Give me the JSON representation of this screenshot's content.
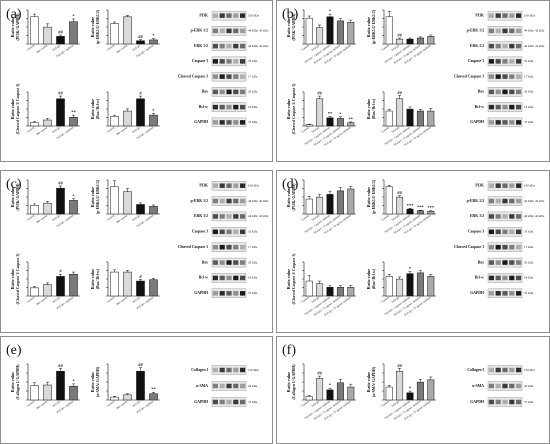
{
  "figure": {
    "panels": [
      {
        "label": "(a)",
        "charts": [
          {
            "ylabel": "Ratio value (PI3K/ GAPDH)",
            "categories": [
              "Control",
              "Bee venom",
              "TGF-β1",
              "TGF-β1+ melittin"
            ],
            "values": [
              1.0,
              0.62,
              0.28,
              0.82
            ],
            "errors": [
              0.1,
              0.12,
              0.05,
              0.1
            ],
            "marks": [
              "",
              "",
              "##",
              "*"
            ]
          },
          {
            "ylabel": "Ratio value (p-ERK1/2/ ERK1/2)",
            "categories": [
              "Control",
              "Bee venom",
              "TGF-β1",
              "TGF-β1+ melittin"
            ],
            "values": [
              0.75,
              1.0,
              0.12,
              0.15
            ],
            "errors": [
              0.06,
              0.05,
              0.04,
              0.05
            ],
            "marks": [
              "",
              "",
              "##",
              "*"
            ]
          },
          {
            "ylabel": "Ratio value (Cleaved Caspase 3/ Caspase 3)",
            "categories": [
              "Control",
              "Bee venom",
              "TGF-β1",
              "TGF-β1+ melittin"
            ],
            "values": [
              0.12,
              0.22,
              1.0,
              0.32
            ],
            "errors": [
              0.04,
              0.06,
              0.1,
              0.08
            ],
            "marks": [
              "",
              "",
              "##",
              "**"
            ]
          },
          {
            "ylabel": "Ratio value (Bax/ Bcl-w)",
            "categories": [
              "Control",
              "Bee venom",
              "TGF-β1",
              "TGF-β1+ melittin"
            ],
            "values": [
              0.35,
              0.55,
              1.0,
              0.4
            ],
            "errors": [
              0.05,
              0.08,
              0.1,
              0.06
            ],
            "marks": [
              "",
              "",
              "#",
              "*"
            ]
          }
        ],
        "blots": [
          {
            "protein": "PI3K",
            "size": "100 kDa"
          },
          {
            "protein": "p-ERK 1/2",
            "size": "44 kDa/ 42 kDa"
          },
          {
            "protein": "ERK 1/2",
            "size": "44 kDa/ 42 kDa"
          },
          {
            "protein": "Caspase 3",
            "size": "35 kDa"
          },
          {
            "protein": "Cleaved Caspase 3",
            "size": "17 kDa"
          },
          {
            "protein": "Bax",
            "size": "20 kDa"
          },
          {
            "protein": "Bcl-w",
            "size": "18 kDa"
          },
          {
            "protein": "GAPDH",
            "size": "37 kDa"
          }
        ]
      },
      {
        "label": "(b)",
        "charts": [
          {
            "ylabel": "Ratio value (PI3K/ GAPDH)",
            "categories": [
              "Control",
              "TGF-β1",
              "TGF-β1+ 5 μg/mL melittin",
              "TGF-β1+ 25 μg/mL melittin",
              "TGF-β1+ 50 μg/mL melittin"
            ],
            "values": [
              0.95,
              0.6,
              1.0,
              0.85,
              0.8
            ],
            "errors": [
              0.08,
              0.1,
              0.1,
              0.08,
              0.08
            ],
            "marks": [
              "",
              "",
              "*",
              "",
              ""
            ]
          },
          {
            "ylabel": "Ratio value (p-ERK1/2/ ERK1/2)",
            "categories": [
              "Control",
              "TGF-β1",
              "TGF-β1+ 5 μg/mL melittin",
              "TGF-β1+ 25 μg/mL melittin",
              "TGF-β1+ 50 μg/mL melittin"
            ],
            "values": [
              1.0,
              0.18,
              0.18,
              0.22,
              0.28
            ],
            "errors": [
              0.2,
              0.04,
              0.04,
              0.04,
              0.05
            ],
            "marks": [
              "",
              "##",
              "",
              "",
              ""
            ]
          },
          {
            "ylabel": "Ratio value (Cleaved Caspase 3/ Caspase 3)",
            "categories": [
              "Control",
              "TGF-β1",
              "TGF-β1+ 5 μg/mL melittin",
              "TGF-β1+ 25 μg/mL melittin",
              "TGF-β1+ 50 μg/mL melittin"
            ],
            "values": [
              0.05,
              1.0,
              0.3,
              0.28,
              0.12
            ],
            "errors": [
              0.02,
              0.1,
              0.05,
              0.06,
              0.03
            ],
            "marks": [
              "",
              "##",
              "**",
              "*",
              "**"
            ]
          },
          {
            "ylabel": "Ratio value (Bax/ Bcl-w)",
            "categories": [
              "Control",
              "TGF-β1",
              "TGF-β1+ 5 μg/mL melittin",
              "TGF-β1+ 25 μg/mL melittin",
              "TGF-β1+ 50 μg/mL melittin"
            ],
            "values": [
              0.55,
              1.0,
              0.62,
              0.55,
              0.55
            ],
            "errors": [
              0.06,
              0.12,
              0.08,
              0.06,
              0.1
            ],
            "marks": [
              "",
              "##",
              "",
              "",
              ""
            ]
          }
        ],
        "blots": [
          {
            "protein": "PI3K",
            "size": "100 kDa"
          },
          {
            "protein": "p-ERK 1/2",
            "size": "44 kDa/ 42 kDa"
          },
          {
            "protein": "ERK 1/2",
            "size": "44 kDa/ 42 kDa"
          },
          {
            "protein": "Caspase 3",
            "size": "35 kDa"
          },
          {
            "protein": "Cleaved Caspase 3",
            "size": "17 kDa"
          },
          {
            "protein": "Bax",
            "size": "20 kDa"
          },
          {
            "protein": "Bcl-w",
            "size": "18 kDa"
          },
          {
            "protein": "GAPDH",
            "size": "37 kDa"
          }
        ]
      },
      {
        "label": "(c)",
        "charts": [
          {
            "ylabel": "Ratio value (PI3K/ GAPDH)",
            "categories": [
              "Control",
              "Bee venom",
              "TGF-β1",
              "TGF-β1+ melittin"
            ],
            "values": [
              0.32,
              0.4,
              0.95,
              0.5
            ],
            "errors": [
              0.05,
              0.06,
              0.08,
              0.06
            ],
            "marks": [
              "",
              "",
              "##",
              "*"
            ]
          },
          {
            "ylabel": "Ratio value (p-ERK1/2/ ERK1/2)",
            "categories": [
              "Control",
              "Bee venom",
              "TGF-β1",
              "TGF-β1+ melittin"
            ],
            "values": [
              1.0,
              0.82,
              0.35,
              0.28
            ],
            "errors": [
              0.22,
              0.12,
              0.06,
              0.05
            ],
            "marks": [
              "",
              "",
              "",
              ""
            ]
          },
          {
            "ylabel": "Ratio value (Cleaved Caspase 3/ Caspase 3)",
            "categories": [
              "Control",
              "Bee venom",
              "TGF-β1",
              "TGF-β1+ melittin"
            ],
            "values": [
              0.3,
              0.42,
              0.72,
              0.8
            ],
            "errors": [
              0.05,
              0.06,
              0.08,
              0.08
            ],
            "marks": [
              "",
              "",
              "#",
              ""
            ]
          },
          {
            "ylabel": "Ratio value (Bax/ Bcl-w)",
            "categories": [
              "Control",
              "Bee venom",
              "TGF-β1",
              "TGF-β1+ melittin"
            ],
            "values": [
              0.88,
              0.88,
              0.55,
              0.6
            ],
            "errors": [
              0.08,
              0.06,
              0.06,
              0.05
            ],
            "marks": [
              "",
              "",
              "#",
              ""
            ]
          }
        ],
        "blots": [
          {
            "protein": "PI3K",
            "size": "100 kDa"
          },
          {
            "protein": "p-ERK 1/2",
            "size": "44 kDa/ 42 kDa"
          },
          {
            "protein": "ERK 1/2",
            "size": "44 kDa/ 42 kDa"
          },
          {
            "protein": "Caspase 3",
            "size": "35 kDa"
          },
          {
            "protein": "Cleaved Caspase 3",
            "size": "17 kDa"
          },
          {
            "protein": "Bax",
            "size": "20 kDa"
          },
          {
            "protein": "Bcl-w",
            "size": "18 kDa"
          },
          {
            "protein": "GAPDH",
            "size": "37 kDa"
          }
        ]
      },
      {
        "label": "(d)",
        "charts": [
          {
            "ylabel": "Ratio value (PI3K/ GAPDH)",
            "categories": [
              "Control",
              "TGF-β1",
              "TGF-β1+ 5 μg/mL melittin",
              "TGF-β1+ 25 μg/mL melittin",
              "TGF-β1+ 50 μg/mL melittin"
            ],
            "values": [
              0.55,
              0.62,
              0.72,
              0.85,
              0.92
            ],
            "errors": [
              0.1,
              0.1,
              0.12,
              0.12,
              0.1
            ],
            "marks": [
              "",
              "",
              "",
              "",
              ""
            ]
          },
          {
            "ylabel": "Ratio value (p-ERK1/2/ ERK1/2)",
            "categories": [
              "Control",
              "TGF-β1",
              "TGF-β1+ 5 μg/mL melittin",
              "TGF-β1+ 25 μg/mL melittin",
              "TGF-β1+ 50 μg/mL melittin"
            ],
            "values": [
              1.0,
              0.62,
              0.18,
              0.12,
              0.1
            ],
            "errors": [
              0.05,
              0.06,
              0.03,
              0.02,
              0.02
            ],
            "marks": [
              "",
              "##",
              "***",
              "***",
              "***"
            ]
          },
          {
            "ylabel": "Ratio value (Cleaved Caspase 3/ Caspase 3)",
            "categories": [
              "Control",
              "TGF-β1",
              "TGF-β1+ 5 μg/mL melittin",
              "TGF-β1+ 25 μg/mL melittin",
              "TGF-β1+ 50 μg/mL melittin"
            ],
            "values": [
              0.55,
              0.45,
              0.32,
              0.32,
              0.32
            ],
            "errors": [
              0.2,
              0.1,
              0.06,
              0.06,
              0.06
            ],
            "marks": [
              "",
              "",
              "",
              "",
              ""
            ]
          },
          {
            "ylabel": "Ratio value (Bax/ Bcl-w)",
            "categories": [
              "Control",
              "TGF-β1",
              "TGF-β1+ 5 μg/mL melittin",
              "TGF-β1+ 25 μg/mL melittin",
              "TGF-β1+ 50 μg/mL melittin"
            ],
            "values": [
              0.72,
              0.62,
              0.82,
              0.85,
              0.72
            ],
            "errors": [
              0.08,
              0.08,
              0.08,
              0.08,
              0.08
            ],
            "marks": [
              "",
              "",
              "*",
              "",
              ""
            ]
          }
        ],
        "blots": [
          {
            "protein": "PI3K",
            "size": "100 kDa"
          },
          {
            "protein": "p-ERK 1/2",
            "size": "44 kDa/ 42 kDa"
          },
          {
            "protein": "ERK 1/2",
            "size": "44 kDa/ 42 kDa"
          },
          {
            "protein": "Caspase 3",
            "size": "35 kDa"
          },
          {
            "protein": "Cleaved Caspase 3",
            "size": "17 kDa"
          },
          {
            "protein": "Bax",
            "size": "20 kDa"
          },
          {
            "protein": "Bcl-w",
            "size": "18 kDa"
          },
          {
            "protein": "GAPDH",
            "size": "37 kDa"
          }
        ]
      },
      {
        "label": "(e)",
        "charts": [
          {
            "ylabel": "Ratio value (Collagen I/ GAPDH)",
            "categories": [
              "Control",
              "Bee venom",
              "TGF-β1",
              "TGF-β1+ melittin"
            ],
            "values": [
              0.5,
              0.52,
              1.0,
              0.48
            ],
            "errors": [
              0.1,
              0.1,
              0.1,
              0.08
            ],
            "marks": [
              "",
              "",
              "##",
              "*"
            ]
          },
          {
            "ylabel": "Ratio value (α-SMA/ GAPDH)",
            "categories": [
              "Control",
              "Bee venom",
              "TGF-β1",
              "TGF-β1+ melittin"
            ],
            "values": [
              0.1,
              0.18,
              1.0,
              0.22
            ],
            "errors": [
              0.03,
              0.04,
              0.12,
              0.05
            ],
            "marks": [
              "",
              "",
              "##",
              "**"
            ]
          }
        ],
        "blots": [
          {
            "protein": "Collagen I",
            "size": "150 kDa"
          },
          {
            "protein": "α-SMA",
            "size": "42 kDa"
          },
          {
            "protein": "GAPDH",
            "size": "37 kDa"
          }
        ]
      },
      {
        "label": "(f)",
        "charts": [
          {
            "ylabel": "Ratio value (Collagen I/ GAPDH)",
            "categories": [
              "Control",
              "TGF-β1",
              "TGF-β1+ 5 μg/mL melittin",
              "TGF-β1+ 25 μg/mL melittin",
              "TGF-β1+ 50 μg/mL melittin"
            ],
            "values": [
              0.12,
              0.75,
              0.35,
              0.6,
              0.45
            ],
            "errors": [
              0.04,
              0.08,
              0.06,
              0.12,
              0.1
            ],
            "marks": [
              "",
              "##",
              "*",
              "",
              ""
            ]
          },
          {
            "ylabel": "Ratio value (α-SMA/ GAPDH)",
            "categories": [
              "Control",
              "TGF-β1",
              "TGF-β1+ 5 μg/mL melittin",
              "TGF-β1+ 25 μg/mL melittin",
              "TGF-β1+ 50 μg/mL melittin"
            ],
            "values": [
              0.45,
              1.0,
              0.25,
              0.62,
              0.7
            ],
            "errors": [
              0.06,
              0.1,
              0.06,
              0.1,
              0.1
            ],
            "marks": [
              "",
              "##",
              "*",
              "",
              ""
            ]
          }
        ],
        "blots": [
          {
            "protein": "Collagen I",
            "size": "150 kDa"
          },
          {
            "protein": "α-SMA",
            "size": "42 kDa"
          },
          {
            "protein": "GAPDH",
            "size": "37 kDa"
          }
        ]
      }
    ]
  }
}
